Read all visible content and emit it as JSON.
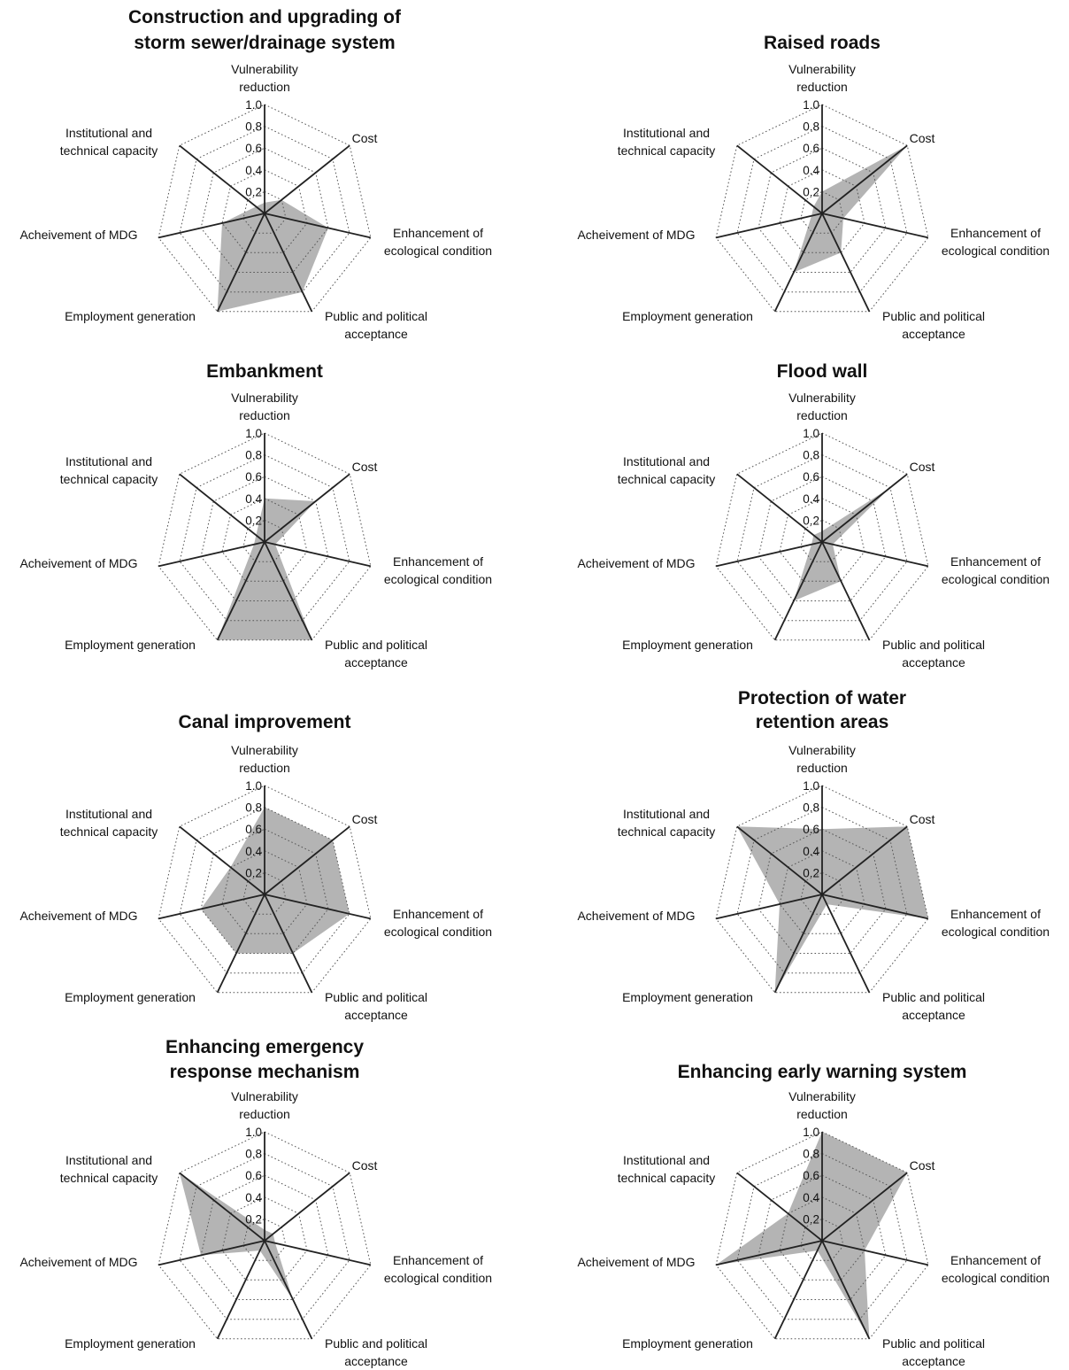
{
  "chart_data": [
    {
      "type": "radar",
      "title": [
        "Construction and upgrading of",
        "storm sewer/drainage system"
      ],
      "axes": [
        [
          "Vulnerability",
          "reduction"
        ],
        [
          "Cost"
        ],
        [
          "Enhancement of",
          "ecological condition"
        ],
        [
          "Public and political",
          "acceptance"
        ],
        [
          "Employment generation"
        ],
        [
          "Acheivement of MDG"
        ],
        [
          "Institutional and",
          "technical capacity"
        ]
      ],
      "ticks": [
        "0.2",
        "0.4",
        "0.6",
        "0.8",
        "1.0"
      ],
      "range": [
        0,
        1
      ],
      "values": [
        0.1,
        0.2,
        0.6,
        0.8,
        1.0,
        0.4,
        0.1
      ]
    },
    {
      "type": "radar",
      "title": [
        "Raised roads"
      ],
      "axes": [
        [
          "Vulnerability",
          "reduction"
        ],
        [
          "Cost"
        ],
        [
          "Enhancement of",
          "ecological condition"
        ],
        [
          "Public and political",
          "acceptance"
        ],
        [
          "Employment generation"
        ],
        [
          "Acheivement of MDG"
        ],
        [
          "Institutional and",
          "technical capacity"
        ]
      ],
      "ticks": [
        "0.2",
        "0.4",
        "0.6",
        "0.8",
        "1.0"
      ],
      "range": [
        0,
        1
      ],
      "values": [
        0.2,
        1.0,
        0.2,
        0.4,
        0.6,
        0.1,
        0.1
      ]
    },
    {
      "type": "radar",
      "title": [
        "Embankment"
      ],
      "axes": [
        [
          "Vulnerability",
          "reduction"
        ],
        [
          "Cost"
        ],
        [
          "Enhancement of",
          "ecological condition"
        ],
        [
          "Public and political",
          "acceptance"
        ],
        [
          "Employment generation"
        ],
        [
          "Acheivement of MDG"
        ],
        [
          "Institutional and",
          "technical capacity"
        ]
      ],
      "ticks": [
        "0.2",
        "0.4",
        "0.6",
        "0.8",
        "1.0"
      ],
      "range": [
        0,
        1
      ],
      "values": [
        0.4,
        0.6,
        0.1,
        1.0,
        1.0,
        0.1,
        0.1
      ]
    },
    {
      "type": "radar",
      "title": [
        "Flood wall"
      ],
      "axes": [
        [
          "Vulnerability",
          "reduction"
        ],
        [
          "Cost"
        ],
        [
          "Enhancement of",
          "ecological condition"
        ],
        [
          "Public and political",
          "acceptance"
        ],
        [
          "Employment generation"
        ],
        [
          "Acheivement of MDG"
        ],
        [
          "Institutional and",
          "technical capacity"
        ]
      ],
      "ticks": [
        "0.2",
        "0.4",
        "0.6",
        "0.8",
        "1.0"
      ],
      "range": [
        0,
        1
      ],
      "values": [
        0.1,
        0.8,
        0.1,
        0.4,
        0.6,
        0.1,
        0.1
      ]
    },
    {
      "type": "radar",
      "title": [
        "Canal improvement"
      ],
      "axes": [
        [
          "Vulnerability",
          "reduction"
        ],
        [
          "Cost"
        ],
        [
          "Enhancement of",
          "ecological condition"
        ],
        [
          "Public and political",
          "acceptance"
        ],
        [
          "Employment generation"
        ],
        [
          "Acheivement of MDG"
        ],
        [
          "Institutional and",
          "technical capacity"
        ]
      ],
      "ticks": [
        "0.2",
        "0.4",
        "0.6",
        "0.8",
        "1.0"
      ],
      "range": [
        0,
        1
      ],
      "values": [
        0.8,
        0.8,
        0.8,
        0.6,
        0.6,
        0.6,
        0.4
      ]
    },
    {
      "type": "radar",
      "title": [
        "Protection of water",
        "retention areas"
      ],
      "axes": [
        [
          "Vulnerability",
          "reduction"
        ],
        [
          "Cost"
        ],
        [
          "Enhancement of",
          "ecological condition"
        ],
        [
          "Public and political",
          "acceptance"
        ],
        [
          "Employment generation"
        ],
        [
          "Acheivement of MDG"
        ],
        [
          "Institutional and",
          "technical capacity"
        ]
      ],
      "ticks": [
        "0.2",
        "0.4",
        "0.6",
        "0.8",
        "1.0"
      ],
      "range": [
        0,
        1
      ],
      "values": [
        0.6,
        1.0,
        1.0,
        0.1,
        1.0,
        0.4,
        1.0
      ]
    },
    {
      "type": "radar",
      "title": [
        "Enhancing emergency",
        "response mechanism"
      ],
      "axes": [
        [
          "Vulnerability",
          "reduction"
        ],
        [
          "Cost"
        ],
        [
          "Enhancement of",
          "ecological condition"
        ],
        [
          "Public and political",
          "acceptance"
        ],
        [
          "Employment generation"
        ],
        [
          "Acheivement of MDG"
        ],
        [
          "Institutional and",
          "technical capacity"
        ]
      ],
      "ticks": [
        "0.2",
        "0.4",
        "0.6",
        "0.8",
        "1.0"
      ],
      "range": [
        0,
        1
      ],
      "values": [
        0.1,
        0.1,
        0.1,
        0.6,
        0.1,
        0.6,
        1.0
      ]
    },
    {
      "type": "radar",
      "title": [
        "Enhancing early warning system"
      ],
      "axes": [
        [
          "Vulnerability",
          "reduction"
        ],
        [
          "Cost"
        ],
        [
          "Enhancement of",
          "ecological condition"
        ],
        [
          "Public and political",
          "acceptance"
        ],
        [
          "Employment generation"
        ],
        [
          "Acheivement of MDG"
        ],
        [
          "Institutional and",
          "technical capacity"
        ]
      ],
      "ticks": [
        "0.2",
        "0.4",
        "0.6",
        "0.8",
        "1.0"
      ],
      "range": [
        0,
        1
      ],
      "values": [
        1.0,
        1.0,
        0.4,
        1.0,
        0.1,
        1.0,
        0.4
      ]
    }
  ]
}
